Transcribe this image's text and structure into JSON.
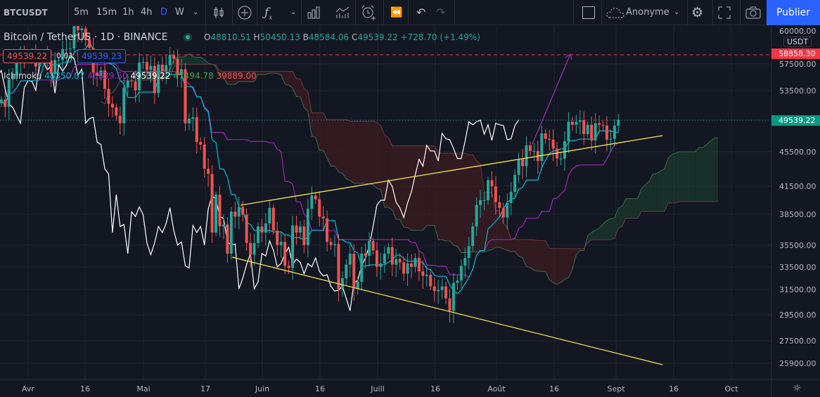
{
  "toolbar": {
    "symbol": "BTCUSDT",
    "intervals": [
      "5m",
      "15m",
      "1h",
      "4h",
      "D",
      "W"
    ],
    "active_interval": "D",
    "user": "Anonyme",
    "publish_label": "Publier"
  },
  "legend": {
    "title": "Bitcoin / TetherUS · 1D · BINANCE",
    "o_label": "O",
    "o": "48810.51",
    "h_label": "H",
    "h": "50450.13",
    "l_label": "B",
    "l": "48584.06",
    "c_label": "C",
    "c": "49539.22",
    "change": "+728.70 (+1.49%)",
    "sell_price": "49539.22",
    "spread": "0.01",
    "buy_price": "49539.23",
    "indicator": {
      "name": "Ichimoku",
      "tenkan": "48350.07",
      "kijun": "46639.50",
      "lagging": "49539.22",
      "span_a": "47494.78",
      "span_b": "39889.00"
    }
  },
  "price_axis": {
    "currency": "USDT",
    "top_label": "60000.00",
    "ticks": [
      "57500.00",
      "53500.00",
      "45500.00",
      "41500.00",
      "38500.00",
      "35500.00",
      "33500.00",
      "31500.00",
      "29500.00",
      "27500.00",
      "25900.00"
    ],
    "alert_price": "58858.30",
    "last_price": "49539.22"
  },
  "time_axis": {
    "ticks": [
      "Avr",
      "16",
      "Mai",
      "17",
      "Juin",
      "16",
      "Juill",
      "16",
      "Août",
      "16",
      "Sept",
      "16",
      "Oct"
    ]
  },
  "colors": {
    "up": "#26a69a",
    "down": "#ef5350",
    "tenkan": "#00bcd4",
    "kijun": "#9c27b0",
    "lagging": "#ffffff",
    "cloud_up": "#1b3a2c",
    "cloud_down": "#3d1c22",
    "trendline": "#f5e642",
    "accent": "#2962ff"
  },
  "chart_data": {
    "type": "candlestick",
    "symbol": "BTCUSDT",
    "interval": "1D",
    "exchange": "BINANCE",
    "y_scale": "log",
    "ylim": [
      25500,
      60500
    ],
    "x_start": "2021-03-25",
    "x_end": "2021-09-02",
    "indicator": "Ichimoku (9, 26, 52)",
    "grid": true,
    "closes": [
      52300,
      51300,
      55200,
      55800,
      57600,
      58800,
      58700,
      58700,
      59000,
      57100,
      58200,
      59100,
      58000,
      56000,
      58100,
      58100,
      59800,
      59800,
      59900,
      63600,
      62900,
      63200,
      61300,
      60000,
      56200,
      55700,
      56500,
      53800,
      51700,
      51200,
      50100,
      49100,
      54000,
      55000,
      54900,
      53600,
      57700,
      57800,
      56600,
      57200,
      53200,
      57400,
      56400,
      57300,
      58900,
      58300,
      55800,
      56700,
      49100,
      49700,
      49900,
      46700,
      46400,
      43500,
      42900,
      36700,
      40600,
      37300,
      37500,
      34700,
      38800,
      38300,
      39300,
      38500,
      35700,
      34600,
      35700,
      37300,
      36700,
      37600,
      39200,
      36900,
      35500,
      35800,
      33600,
      33400,
      37400,
      36700,
      37300,
      35500,
      39100,
      40500,
      40100,
      38300,
      38100,
      35800,
      35500,
      35600,
      31600,
      32500,
      33700,
      34700,
      31600,
      32200,
      34700,
      34500,
      35900,
      35000,
      33500,
      33800,
      34700,
      35300,
      33700,
      34200,
      33900,
      32900,
      33800,
      33500,
      34300,
      33100,
      32700,
      32800,
      31800,
      31400,
      31500,
      31800,
      30800,
      29800,
      32100,
      32300,
      33600,
      34300,
      35400,
      37300,
      39500,
      40000,
      40000,
      42200,
      41500,
      39800,
      39200,
      38200,
      39700,
      40900,
      42800,
      44600,
      43800,
      46300,
      45600,
      45600,
      44400,
      47800,
      47100,
      47000,
      45900,
      44700,
      44700,
      46800,
      49300,
      48900,
      49300,
      49500,
      47700,
      48900,
      46900,
      49100,
      48900,
      48800,
      47000,
      47100,
      48800,
      49539.22
    ]
  }
}
